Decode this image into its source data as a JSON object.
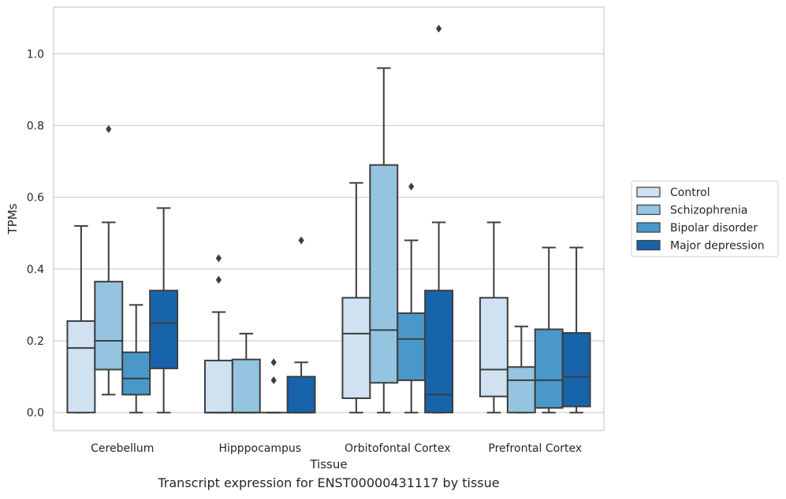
{
  "caption": "Transcript expression for ENST00000431117 by tissue",
  "chart_data": {
    "type": "box",
    "xlabel": "Tissue",
    "ylabel": "TPMs",
    "ylim": [
      -0.05,
      1.13
    ],
    "yticks": [
      0.0,
      0.2,
      0.4,
      0.6,
      0.8,
      1.0
    ],
    "ytick_labels": [
      "0.0",
      "0.2",
      "0.4",
      "0.6",
      "0.8",
      "1.0"
    ],
    "grid": "horizontal",
    "legend_position": "right",
    "categories": [
      "Cerebellum",
      "Hipppocampus",
      "Orbitofontal Cortex",
      "Prefrontal Cortex"
    ],
    "series": [
      {
        "name": "Control",
        "color": "#d0e1f2",
        "boxes": [
          {
            "whislo": 0.0,
            "q1": 0.0,
            "med": 0.18,
            "q3": 0.255,
            "whishi": 0.52,
            "fliers": []
          },
          {
            "whislo": 0.0,
            "q1": 0.0,
            "med": 0.0,
            "q3": 0.145,
            "whishi": 0.28,
            "fliers": [
              0.37,
              0.43
            ]
          },
          {
            "whislo": 0.0,
            "q1": 0.04,
            "med": 0.22,
            "q3": 0.32,
            "whishi": 0.64,
            "fliers": []
          },
          {
            "whislo": 0.0,
            "q1": 0.045,
            "med": 0.12,
            "q3": 0.32,
            "whishi": 0.53,
            "fliers": []
          }
        ]
      },
      {
        "name": "Schizophrenia",
        "color": "#94c4df",
        "boxes": [
          {
            "whislo": 0.05,
            "q1": 0.12,
            "med": 0.2,
            "q3": 0.365,
            "whishi": 0.53,
            "fliers": [
              0.79
            ]
          },
          {
            "whislo": 0.0,
            "q1": 0.0,
            "med": 0.0,
            "q3": 0.148,
            "whishi": 0.22,
            "fliers": []
          },
          {
            "whislo": 0.0,
            "q1": 0.083,
            "med": 0.23,
            "q3": 0.69,
            "whishi": 0.96,
            "fliers": []
          },
          {
            "whislo": 0.0,
            "q1": 0.0,
            "med": 0.09,
            "q3": 0.127,
            "whishi": 0.24,
            "fliers": []
          }
        ]
      },
      {
        "name": "Bipolar disorder",
        "color": "#4a98c9",
        "boxes": [
          {
            "whislo": 0.0,
            "q1": 0.05,
            "med": 0.095,
            "q3": 0.168,
            "whishi": 0.3,
            "fliers": []
          },
          {
            "whislo": 0.0,
            "q1": 0.0,
            "med": 0.0,
            "q3": 0.0,
            "whishi": 0.0,
            "fliers": [
              0.09,
              0.14
            ]
          },
          {
            "whislo": 0.0,
            "q1": 0.09,
            "med": 0.205,
            "q3": 0.277,
            "whishi": 0.48,
            "fliers": [
              0.63
            ]
          },
          {
            "whislo": 0.0,
            "q1": 0.013,
            "med": 0.09,
            "q3": 0.232,
            "whishi": 0.46,
            "fliers": []
          }
        ]
      },
      {
        "name": "Major depression",
        "color": "#1764ab",
        "boxes": [
          {
            "whislo": 0.0,
            "q1": 0.123,
            "med": 0.25,
            "q3": 0.34,
            "whishi": 0.57,
            "fliers": []
          },
          {
            "whislo": 0.0,
            "q1": 0.0,
            "med": 0.0,
            "q3": 0.1,
            "whishi": 0.14,
            "fliers": [
              0.48
            ]
          },
          {
            "whislo": 0.0,
            "q1": 0.0,
            "med": 0.05,
            "q3": 0.34,
            "whishi": 0.53,
            "fliers": [
              1.07
            ]
          },
          {
            "whislo": 0.0,
            "q1": 0.017,
            "med": 0.1,
            "q3": 0.222,
            "whishi": 0.46,
            "fliers": []
          }
        ]
      }
    ]
  }
}
